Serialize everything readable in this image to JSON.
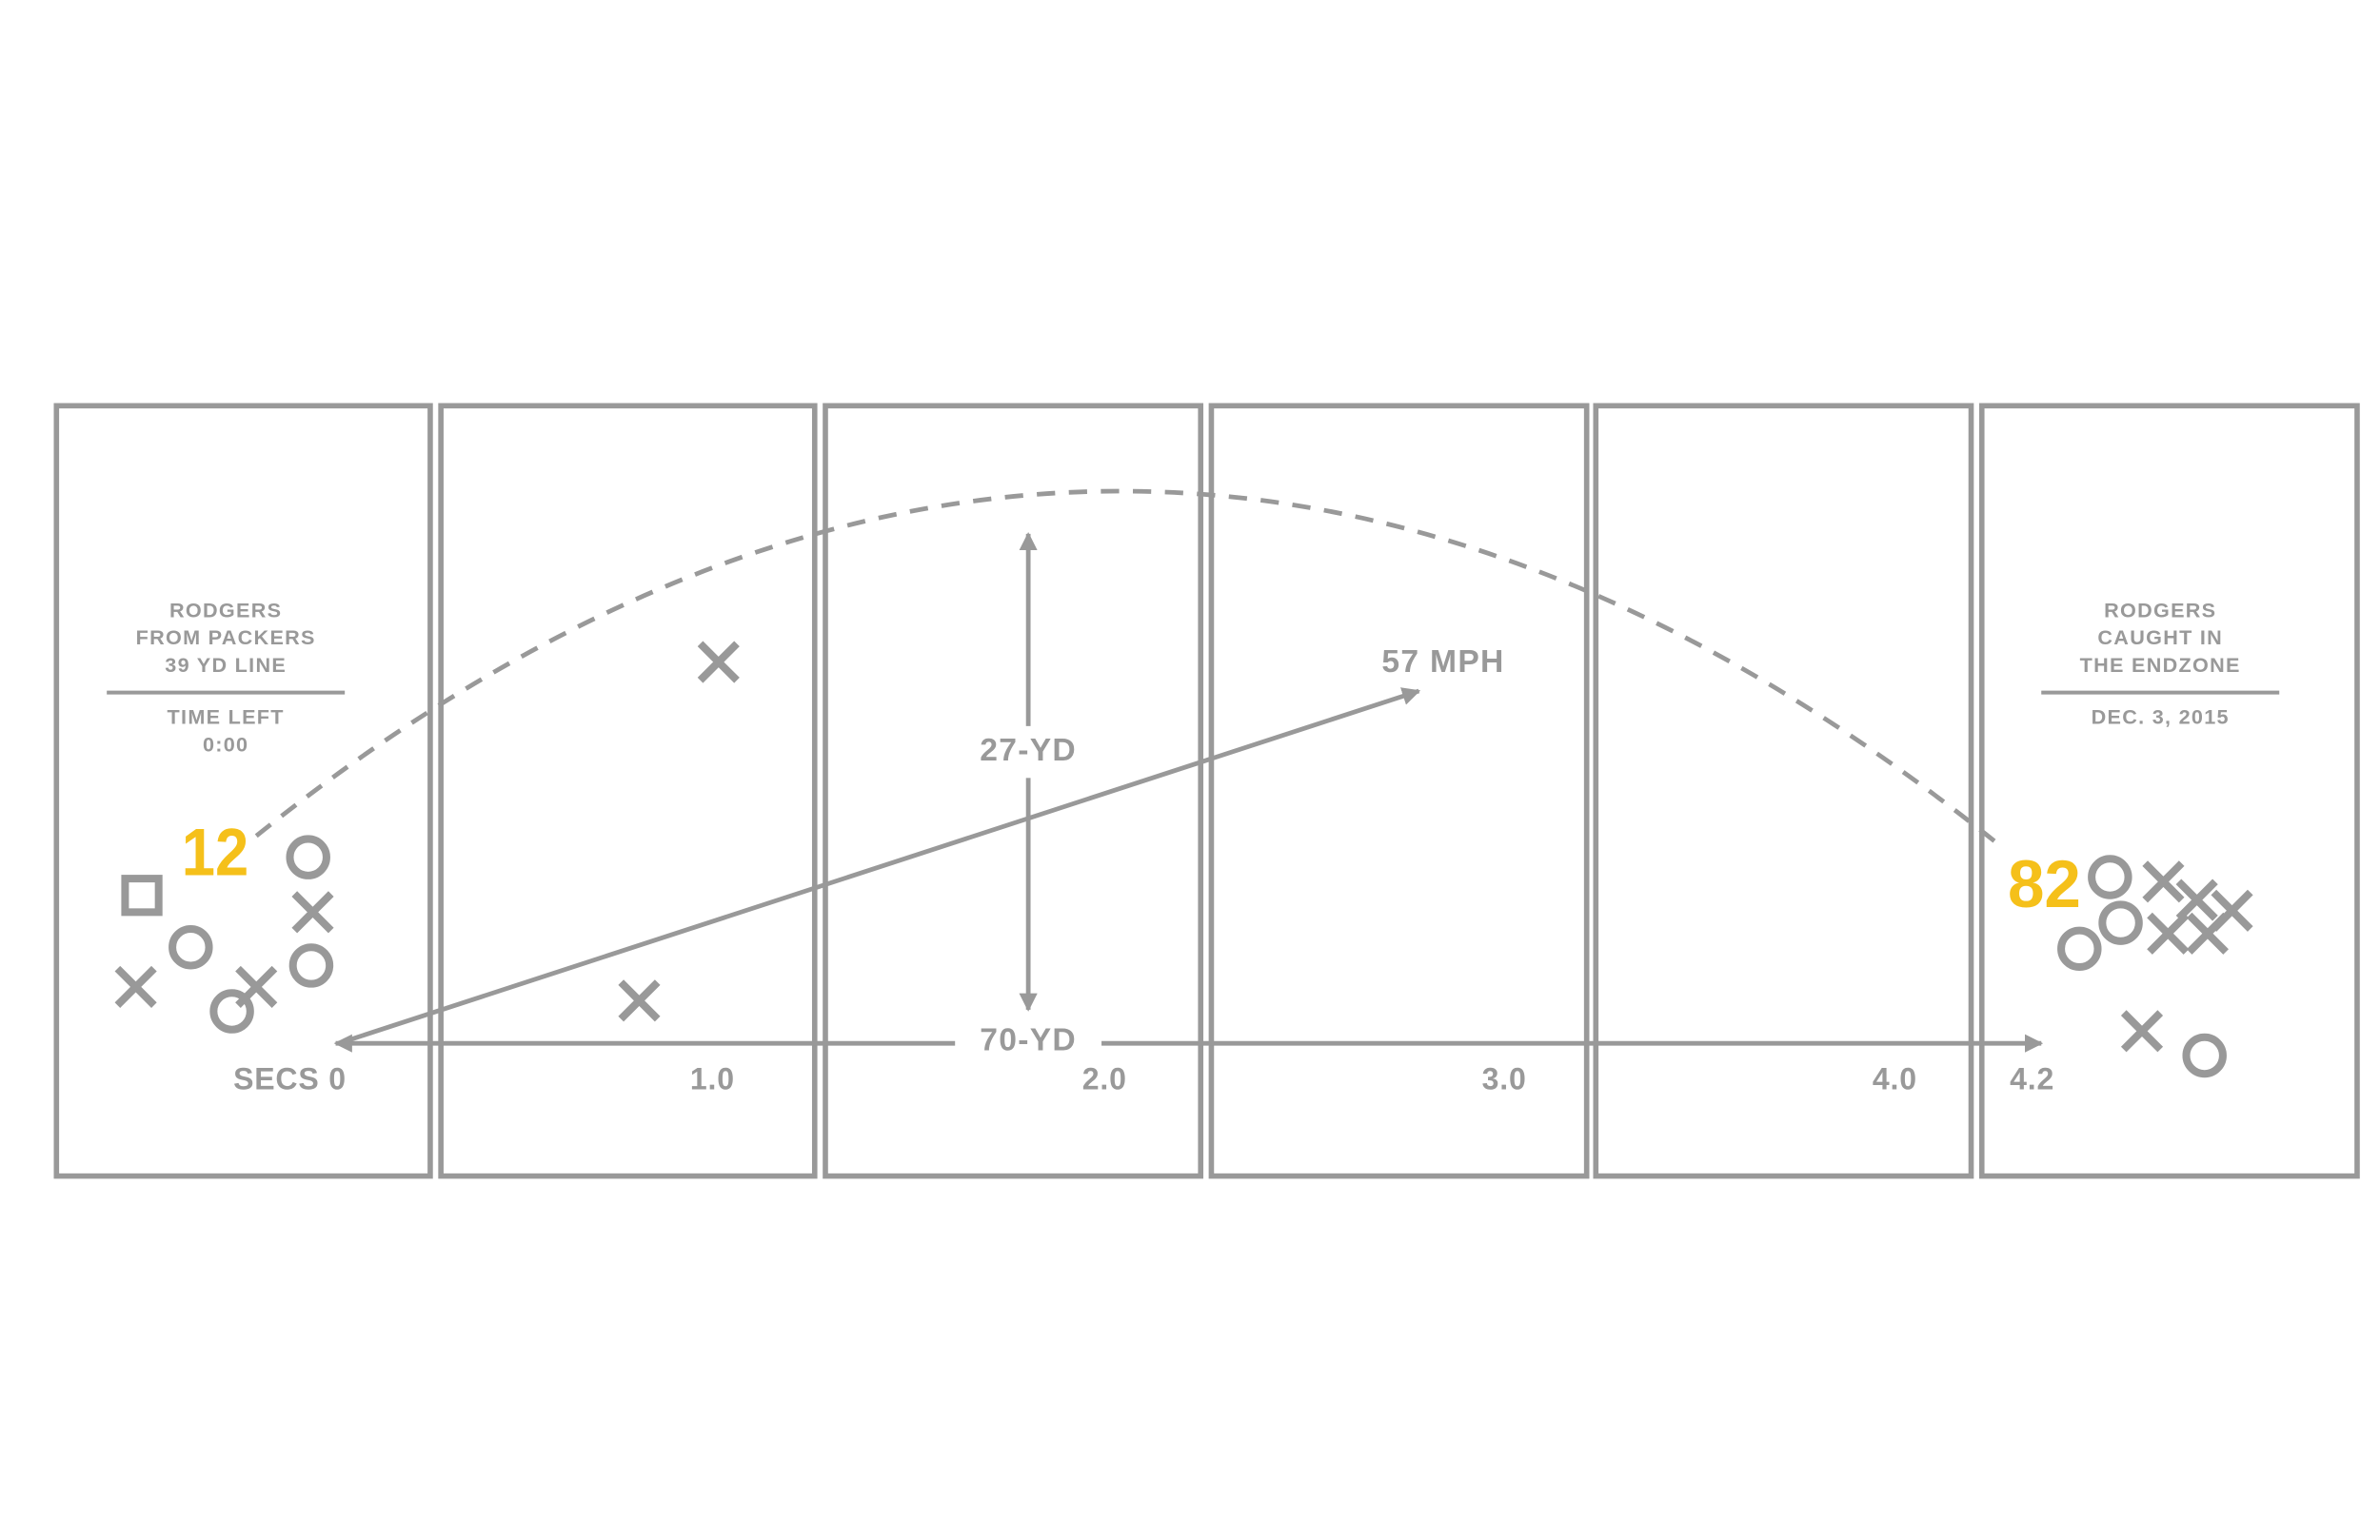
{
  "start_card": {
    "lines": [
      "RODGERS",
      "FROM PACKERS",
      "39 YD LINE"
    ],
    "time_label": "TIME LEFT",
    "time": "0:00"
  },
  "end_card": {
    "lines": [
      "RODGERS",
      "CAUGHT IN",
      "THE ENDZONE"
    ],
    "date": "DEC. 3, 2015"
  },
  "players": {
    "passer": "12",
    "receiver": "82"
  },
  "annotations": {
    "speed": "57 MPH",
    "height": "27-YD",
    "distance": "70-YD"
  },
  "time_axis": [
    "SECS 0",
    "1.0",
    "2.0",
    "3.0",
    "4.0",
    "4.2"
  ]
}
